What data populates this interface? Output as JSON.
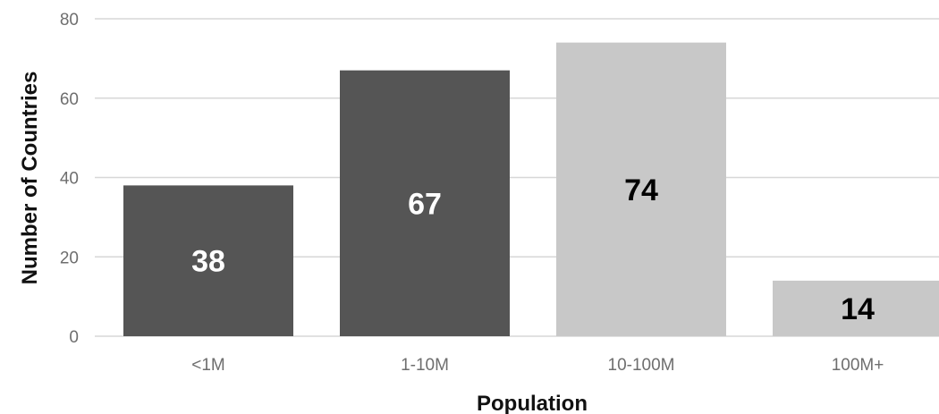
{
  "chart_data": {
    "type": "bar",
    "title": "",
    "xlabel": "Population",
    "ylabel": "Number of Countries",
    "categories": [
      "<1M",
      "1-10M",
      "10-100M",
      "100M+"
    ],
    "values": [
      38,
      67,
      74,
      14
    ],
    "data_labels": [
      "38",
      "67",
      "74",
      "14"
    ],
    "ylim": [
      0,
      80
    ],
    "yticks": [
      "0",
      "20",
      "40",
      "60",
      "80"
    ],
    "grid": true,
    "legend": "none",
    "bar_colors": [
      "#555555",
      "#555555",
      "#c8c8c8",
      "#c8c8c8"
    ],
    "label_colors": [
      "#ffffff",
      "#ffffff",
      "#000000",
      "#000000"
    ]
  }
}
